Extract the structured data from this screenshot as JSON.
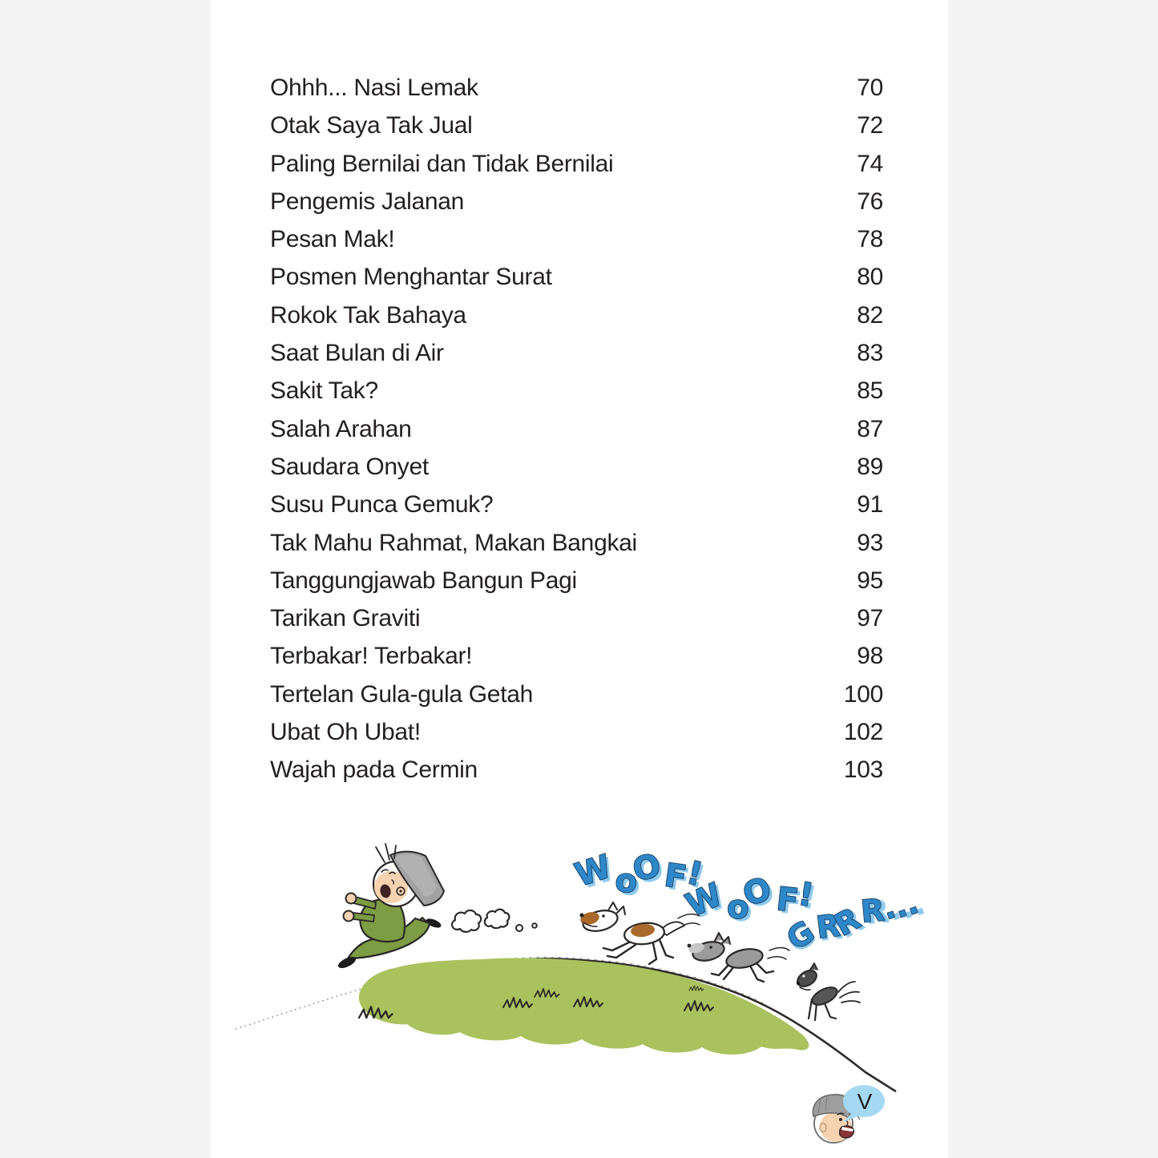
{
  "colors": {
    "background": "#f4f4f4",
    "paper": "#ffffff",
    "text": "#231f20",
    "ink": "#2a2727",
    "hill_green": "#aac25e",
    "outfit_green": "#7d9c43",
    "skin": "#f6d2b0",
    "cap_gray": "#a2a2a2",
    "dog_brown": "#a8692a",
    "dog_gray": "#9a9a9a",
    "dog_dark": "#565656",
    "sound_blue": "#2e87c8",
    "sound_blue_light": "#8ecaed",
    "sound_outline": "#1b3c5e",
    "bubble_blue": "#a5d9f3"
  },
  "toc": {
    "entries": [
      {
        "title": "Ohhh... Nasi Lemak",
        "page": "70"
      },
      {
        "title": "Otak Saya Tak Jual",
        "page": "72"
      },
      {
        "title": "Paling Bernilai dan Tidak Bernilai",
        "page": "74"
      },
      {
        "title": "Pengemis Jalanan",
        "page": "76"
      },
      {
        "title": "Pesan Mak!",
        "page": "78"
      },
      {
        "title": "Posmen Menghantar Surat",
        "page": "80"
      },
      {
        "title": "Rokok Tak Bahaya",
        "page": "82"
      },
      {
        "title": "Saat Bulan di Air",
        "page": "83"
      },
      {
        "title": "Sakit Tak?",
        "page": "85"
      },
      {
        "title": "Salah Arahan",
        "page": "87"
      },
      {
        "title": "Saudara Onyet",
        "page": "89"
      },
      {
        "title": "Susu Punca Gemuk?",
        "page": "91"
      },
      {
        "title": "Tak Mahu Rahmat, Makan Bangkai",
        "page": "93"
      },
      {
        "title": "Tanggungjawab Bangun Pagi",
        "page": "95"
      },
      {
        "title": "Tarikan Graviti",
        "page": "97"
      },
      {
        "title": "Terbakar! Terbakar!",
        "page": "98"
      },
      {
        "title": "Tertelan Gula-gula Getah",
        "page": "100"
      },
      {
        "title": "Ubat Oh Ubat!",
        "page": "102"
      },
      {
        "title": "Wajah pada Cermin",
        "page": "103"
      }
    ]
  },
  "illustration": {
    "sounds": {
      "woof1": "WoOF!",
      "woof2": "WoOF!",
      "grrr": "GRRR..."
    }
  },
  "footer": {
    "page_marker": "V"
  }
}
